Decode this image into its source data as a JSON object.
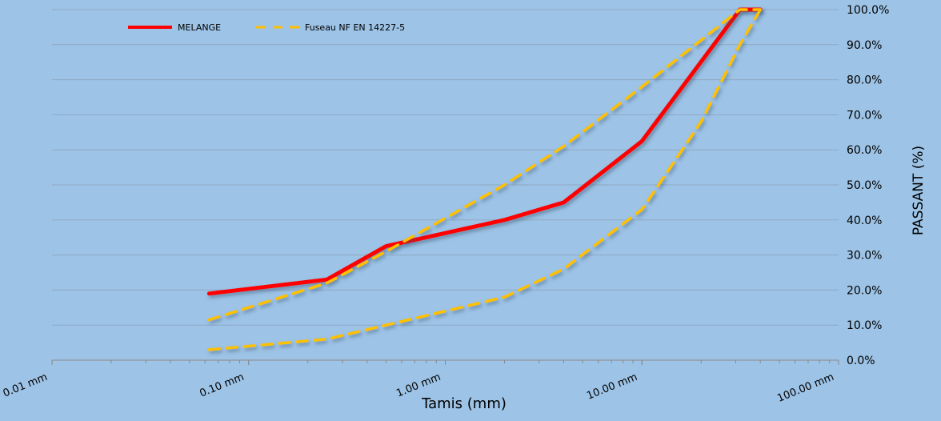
{
  "chart_data": {
    "type": "line",
    "xscale": "log",
    "xlim": [
      0.01,
      100
    ],
    "ylim": [
      0,
      100
    ],
    "xlabel": "Tamis (mm)",
    "ylabel": "PASSANT (%)",
    "grid": "horizontal",
    "legend_position": "top-left",
    "x_ticks": [
      {
        "value": 0.01,
        "label": "0.01 mm"
      },
      {
        "value": 0.1,
        "label": "0.10 mm"
      },
      {
        "value": 1,
        "label": "1.00 mm"
      },
      {
        "value": 10,
        "label": "10.00 mm"
      },
      {
        "value": 100,
        "label": "100.00 mm"
      }
    ],
    "y_ticks": [
      {
        "value": 0,
        "label": "0.0%"
      },
      {
        "value": 10,
        "label": "10.0%"
      },
      {
        "value": 20,
        "label": "20.0%"
      },
      {
        "value": 30,
        "label": "30.0%"
      },
      {
        "value": 40,
        "label": "40.0%"
      },
      {
        "value": 50,
        "label": "50.0%"
      },
      {
        "value": 60,
        "label": "60.0%"
      },
      {
        "value": 70,
        "label": "70.0%"
      },
      {
        "value": 80,
        "label": "80.0%"
      },
      {
        "value": 90,
        "label": "90.0%"
      },
      {
        "value": 100,
        "label": "100.0%"
      }
    ],
    "series": [
      {
        "name": "MELANGE",
        "color": "#ff0000",
        "style": "solid",
        "points": [
          [
            0.063,
            19
          ],
          [
            0.25,
            23
          ],
          [
            0.5,
            32.5
          ],
          [
            2,
            40
          ],
          [
            4,
            45
          ],
          [
            10,
            62.5
          ],
          [
            31.5,
            100
          ],
          [
            40,
            100
          ]
        ]
      },
      {
        "name": "Fuseau NF EN 14227-5",
        "color": "#ffc000",
        "style": "dashed",
        "points": [
          [
            0.063,
            11.5
          ],
          [
            0.25,
            22
          ],
          [
            0.5,
            31
          ],
          [
            2,
            50
          ],
          [
            4,
            61
          ],
          [
            10,
            78
          ],
          [
            31.5,
            100
          ],
          [
            40,
            100
          ]
        ]
      },
      {
        "name": "",
        "legend": false,
        "color": "#ffc000",
        "style": "dashed",
        "points": [
          [
            0.063,
            3
          ],
          [
            0.25,
            6
          ],
          [
            0.5,
            10
          ],
          [
            2,
            18
          ],
          [
            4,
            26
          ],
          [
            10,
            43
          ],
          [
            20,
            68
          ],
          [
            31.5,
            90
          ],
          [
            40,
            100
          ]
        ]
      }
    ]
  }
}
